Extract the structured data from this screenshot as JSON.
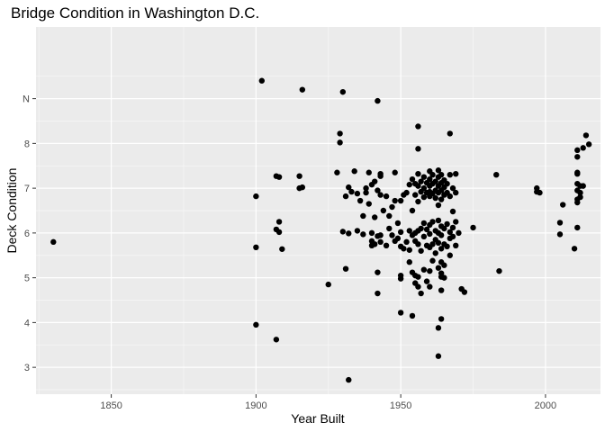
{
  "chart_data": {
    "type": "scatter",
    "title": "Bridge Condition in Washington D.C.",
    "xlabel": "Year Built",
    "ylabel": "Deck Condition",
    "xlim": [
      1824,
      2019
    ],
    "ylim": [
      2.4,
      10.6
    ],
    "x_ticks": [
      1850,
      1900,
      1950,
      2000
    ],
    "y_ticks": [
      {
        "value": 3,
        "label": "3"
      },
      {
        "value": 4,
        "label": "4"
      },
      {
        "value": 5,
        "label": "5"
      },
      {
        "value": 6,
        "label": "6"
      },
      {
        "value": 7,
        "label": "7"
      },
      {
        "value": 8,
        "label": "8"
      },
      {
        "value": 9,
        "label": "N"
      }
    ],
    "grid": true,
    "point_color": "#000000",
    "panel_color": "#ebebeb",
    "series": [
      {
        "points": [
          [
            1830,
            5.8
          ],
          [
            1900,
            6.82
          ],
          [
            1900,
            5.68
          ],
          [
            1900,
            3.95
          ],
          [
            1902,
            9.4
          ],
          [
            1907,
            7.27
          ],
          [
            1908,
            7.25
          ],
          [
            1908,
            6.25
          ],
          [
            1907,
            6.08
          ],
          [
            1908,
            6.02
          ],
          [
            1909,
            5.64
          ],
          [
            1907,
            3.62
          ],
          [
            1915,
            7.27
          ],
          [
            1915,
            7.0
          ],
          [
            1916,
            7.02
          ],
          [
            1916,
            9.2
          ],
          [
            1925,
            4.85
          ],
          [
            1928,
            7.35
          ],
          [
            1929,
            8.22
          ],
          [
            1929,
            8.02
          ],
          [
            1930,
            9.15
          ],
          [
            1930,
            6.03
          ],
          [
            1931,
            6.82
          ],
          [
            1931,
            5.2
          ],
          [
            1932,
            7.02
          ],
          [
            1932,
            5.99
          ],
          [
            1932,
            2.72
          ],
          [
            1933,
            6.92
          ],
          [
            1934,
            7.38
          ],
          [
            1935,
            6.88
          ],
          [
            1935,
            6.05
          ],
          [
            1936,
            6.72
          ],
          [
            1937,
            6.38
          ],
          [
            1937,
            5.97
          ],
          [
            1938,
            6.9
          ],
          [
            1938,
            7.0
          ],
          [
            1939,
            7.35
          ],
          [
            1939,
            6.65
          ],
          [
            1940,
            7.08
          ],
          [
            1940,
            6.0
          ],
          [
            1940,
            5.82
          ],
          [
            1940,
            5.72
          ],
          [
            1941,
            7.15
          ],
          [
            1941,
            6.35
          ],
          [
            1941,
            5.75
          ],
          [
            1942,
            8.95
          ],
          [
            1942,
            6.95
          ],
          [
            1942,
            5.93
          ],
          [
            1942,
            5.12
          ],
          [
            1942,
            4.65
          ],
          [
            1943,
            7.32
          ],
          [
            1943,
            7.27
          ],
          [
            1943,
            6.85
          ],
          [
            1943,
            5.95
          ],
          [
            1943,
            5.8
          ],
          [
            1944,
            6.5
          ],
          [
            1945,
            6.82
          ],
          [
            1945,
            5.72
          ],
          [
            1946,
            6.38
          ],
          [
            1946,
            6.1
          ],
          [
            1947,
            6.58
          ],
          [
            1947,
            5.95
          ],
          [
            1948,
            7.35
          ],
          [
            1948,
            6.72
          ],
          [
            1948,
            5.82
          ],
          [
            1949,
            6.22
          ],
          [
            1949,
            5.88
          ],
          [
            1950,
            6.72
          ],
          [
            1950,
            6.02
          ],
          [
            1950,
            5.7
          ],
          [
            1950,
            5.05
          ],
          [
            1950,
            4.98
          ],
          [
            1950,
            4.22
          ],
          [
            1951,
            6.85
          ],
          [
            1951,
            5.65
          ],
          [
            1952,
            6.9
          ],
          [
            1952,
            5.8
          ],
          [
            1953,
            7.08
          ],
          [
            1953,
            6.05
          ],
          [
            1953,
            5.62
          ],
          [
            1953,
            5.35
          ],
          [
            1954,
            7.2
          ],
          [
            1954,
            6.5
          ],
          [
            1954,
            5.95
          ],
          [
            1954,
            5.12
          ],
          [
            1954,
            4.15
          ],
          [
            1955,
            7.1
          ],
          [
            1955,
            6.85
          ],
          [
            1955,
            6.0
          ],
          [
            1955,
            5.82
          ],
          [
            1955,
            5.05
          ],
          [
            1955,
            4.88
          ],
          [
            1956,
            8.38
          ],
          [
            1956,
            7.88
          ],
          [
            1956,
            7.32
          ],
          [
            1956,
            7.05
          ],
          [
            1956,
            6.7
          ],
          [
            1956,
            6.05
          ],
          [
            1956,
            5.75
          ],
          [
            1956,
            5.02
          ],
          [
            1956,
            4.8
          ],
          [
            1957,
            7.15
          ],
          [
            1957,
            6.92
          ],
          [
            1957,
            6.1
          ],
          [
            1957,
            5.6
          ],
          [
            1957,
            4.65
          ],
          [
            1958,
            7.25
          ],
          [
            1958,
            7.0
          ],
          [
            1958,
            6.8
          ],
          [
            1958,
            6.22
          ],
          [
            1958,
            5.92
          ],
          [
            1958,
            5.18
          ],
          [
            1959,
            7.12
          ],
          [
            1959,
            6.9
          ],
          [
            1959,
            6.08
          ],
          [
            1959,
            5.72
          ],
          [
            1959,
            4.92
          ],
          [
            1960,
            7.38
          ],
          [
            1960,
            7.2
          ],
          [
            1960,
            7.05
          ],
          [
            1960,
            6.92
          ],
          [
            1960,
            6.82
          ],
          [
            1960,
            6.18
          ],
          [
            1960,
            5.98
          ],
          [
            1960,
            5.68
          ],
          [
            1960,
            5.15
          ],
          [
            1960,
            4.8
          ],
          [
            1961,
            7.3
          ],
          [
            1961,
            7.1
          ],
          [
            1961,
            6.88
          ],
          [
            1961,
            6.25
          ],
          [
            1961,
            5.75
          ],
          [
            1961,
            5.38
          ],
          [
            1962,
            7.15
          ],
          [
            1962,
            6.95
          ],
          [
            1962,
            6.78
          ],
          [
            1962,
            6.05
          ],
          [
            1962,
            5.85
          ],
          [
            1962,
            5.55
          ],
          [
            1963,
            7.4
          ],
          [
            1963,
            7.25
          ],
          [
            1963,
            7.05
          ],
          [
            1963,
            6.9
          ],
          [
            1963,
            6.62
          ],
          [
            1963,
            6.28
          ],
          [
            1963,
            6.0
          ],
          [
            1963,
            5.78
          ],
          [
            1963,
            5.22
          ],
          [
            1963,
            3.88
          ],
          [
            1963,
            3.25
          ],
          [
            1964,
            7.3
          ],
          [
            1964,
            7.12
          ],
          [
            1964,
            6.95
          ],
          [
            1964,
            6.75
          ],
          [
            1964,
            6.15
          ],
          [
            1964,
            5.95
          ],
          [
            1964,
            5.65
          ],
          [
            1964,
            5.35
          ],
          [
            1964,
            5.1
          ],
          [
            1964,
            5.02
          ],
          [
            1964,
            4.72
          ],
          [
            1964,
            4.08
          ],
          [
            1965,
            7.18
          ],
          [
            1965,
            7.02
          ],
          [
            1965,
            6.85
          ],
          [
            1965,
            6.1
          ],
          [
            1965,
            5.75
          ],
          [
            1965,
            5.28
          ],
          [
            1965,
            5.0
          ],
          [
            1966,
            7.1
          ],
          [
            1966,
            6.9
          ],
          [
            1966,
            6.2
          ],
          [
            1966,
            5.7
          ],
          [
            1967,
            8.22
          ],
          [
            1967,
            7.3
          ],
          [
            1967,
            6.82
          ],
          [
            1967,
            6.02
          ],
          [
            1967,
            5.88
          ],
          [
            1967,
            5.5
          ],
          [
            1968,
            7.0
          ],
          [
            1968,
            6.48
          ],
          [
            1968,
            6.12
          ],
          [
            1968,
            5.92
          ],
          [
            1969,
            7.32
          ],
          [
            1969,
            6.9
          ],
          [
            1969,
            6.25
          ],
          [
            1969,
            5.72
          ],
          [
            1970,
            6.0
          ],
          [
            1971,
            4.75
          ],
          [
            1972,
            4.68
          ],
          [
            1975,
            6.12
          ],
          [
            1983,
            7.3
          ],
          [
            1984,
            5.15
          ],
          [
            1997,
            7.0
          ],
          [
            1997,
            6.92
          ],
          [
            1998,
            6.9
          ],
          [
            2005,
            6.23
          ],
          [
            2005,
            5.97
          ],
          [
            2006,
            6.63
          ],
          [
            2010,
            5.65
          ],
          [
            2011,
            7.85
          ],
          [
            2011,
            7.7
          ],
          [
            2011,
            7.35
          ],
          [
            2011,
            7.32
          ],
          [
            2011,
            7.1
          ],
          [
            2011,
            6.95
          ],
          [
            2011,
            6.75
          ],
          [
            2011,
            6.68
          ],
          [
            2011,
            6.12
          ],
          [
            2012,
            7.05
          ],
          [
            2012,
            6.9
          ],
          [
            2012,
            6.8
          ],
          [
            2013,
            7.9
          ],
          [
            2013,
            7.05
          ],
          [
            2014,
            8.18
          ],
          [
            2015,
            7.98
          ]
        ]
      }
    ]
  }
}
